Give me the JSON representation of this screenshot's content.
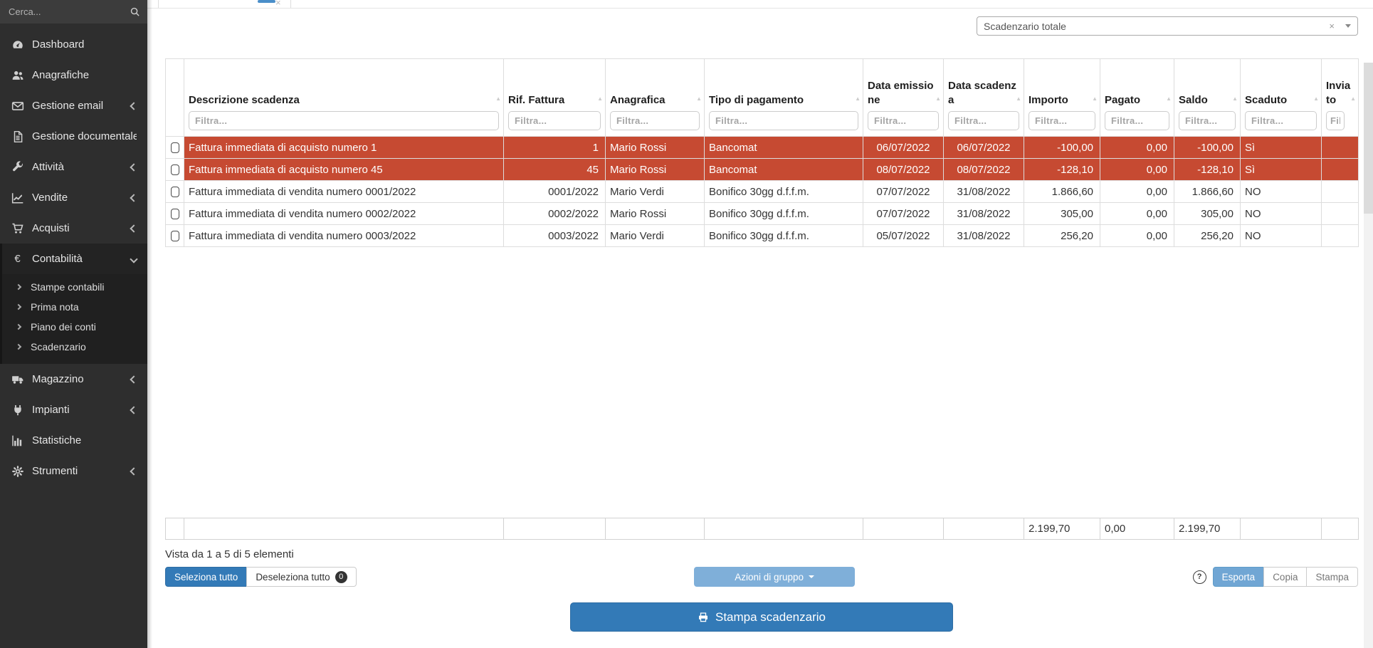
{
  "sidebar": {
    "search_placeholder": "Cerca...",
    "items": [
      {
        "label": "Dashboard",
        "icon": "dashboard"
      },
      {
        "label": "Anagrafiche",
        "icon": "users"
      },
      {
        "label": "Gestione email",
        "icon": "envelope",
        "collapsed": true
      },
      {
        "label": "Gestione documentale",
        "icon": "document"
      },
      {
        "label": "Attività",
        "icon": "wrench",
        "collapsed": true
      },
      {
        "label": "Vendite",
        "icon": "chart-line",
        "collapsed": true
      },
      {
        "label": "Acquisti",
        "icon": "cart",
        "collapsed": true
      },
      {
        "label": "Contabilità",
        "icon": "euro",
        "expanded": true,
        "children": [
          "Stampe contabili",
          "Prima nota",
          "Piano dei conti",
          "Scadenzario"
        ]
      },
      {
        "label": "Magazzino",
        "icon": "truck",
        "collapsed": true
      },
      {
        "label": "Impianti",
        "icon": "plug",
        "collapsed": true
      },
      {
        "label": "Statistiche",
        "icon": "bar-chart"
      },
      {
        "label": "Strumenti",
        "icon": "gear",
        "collapsed": true
      }
    ]
  },
  "topbar": {
    "close_glyph": "×"
  },
  "filter_select": {
    "value": "Scadenzario totale",
    "clear_glyph": "×"
  },
  "table": {
    "sort_glyph": "▲",
    "filter_placeholder": "Filtra...",
    "columns": [
      {
        "key": "cb",
        "label": ""
      },
      {
        "key": "desc",
        "label": "Descrizione scadenza"
      },
      {
        "key": "rif",
        "label": "Rif. Fattura"
      },
      {
        "key": "anagrafica",
        "label": "Anagrafica"
      },
      {
        "key": "tipo",
        "label": "Tipo di pagamento"
      },
      {
        "key": "emissione",
        "label": "Data emissione"
      },
      {
        "key": "scadenza",
        "label": "Data scadenza"
      },
      {
        "key": "importo",
        "label": "Importo"
      },
      {
        "key": "pagato",
        "label": "Pagato"
      },
      {
        "key": "saldo",
        "label": "Saldo"
      },
      {
        "key": "scaduto",
        "label": "Scaduto"
      },
      {
        "key": "inviato",
        "label": "Inviato"
      }
    ],
    "rows": [
      {
        "desc": "Fattura immediata di acquisto numero 1",
        "rif": "1",
        "anagrafica": "Mario Rossi",
        "tipo": "Bancomat",
        "emissione": "06/07/2022",
        "scadenza": "06/07/2022",
        "importo": "-100,00",
        "pagato": "0,00",
        "saldo": "-100,00",
        "scaduto": "Sì",
        "inviato": "",
        "overdue": true
      },
      {
        "desc": "Fattura immediata di acquisto numero 45",
        "rif": "45",
        "anagrafica": "Mario Rossi",
        "tipo": "Bancomat",
        "emissione": "08/07/2022",
        "scadenza": "08/07/2022",
        "importo": "-128,10",
        "pagato": "0,00",
        "saldo": "-128,10",
        "scaduto": "Sì",
        "inviato": "",
        "overdue": true
      },
      {
        "desc": "Fattura immediata di vendita numero 0001/2022",
        "rif": "0001/2022",
        "anagrafica": "Mario Verdi",
        "tipo": "Bonifico 30gg d.f.f.m.",
        "emissione": "07/07/2022",
        "scadenza": "31/08/2022",
        "importo": "1.866,60",
        "pagato": "0,00",
        "saldo": "1.866,60",
        "scaduto": "NO",
        "inviato": "",
        "overdue": false
      },
      {
        "desc": "Fattura immediata di vendita numero 0002/2022",
        "rif": "0002/2022",
        "anagrafica": "Mario Rossi",
        "tipo": "Bonifico 30gg d.f.f.m.",
        "emissione": "07/07/2022",
        "scadenza": "31/08/2022",
        "importo": "305,00",
        "pagato": "0,00",
        "saldo": "305,00",
        "scaduto": "NO",
        "inviato": "",
        "overdue": false
      },
      {
        "desc": "Fattura immediata di vendita numero 0003/2022",
        "rif": "0003/2022",
        "anagrafica": "Mario Verdi",
        "tipo": "Bonifico 30gg d.f.f.m.",
        "emissione": "05/07/2022",
        "scadenza": "31/08/2022",
        "importo": "256,20",
        "pagato": "0,00",
        "saldo": "256,20",
        "scaduto": "NO",
        "inviato": "",
        "overdue": false
      }
    ],
    "totals": {
      "importo": "2.199,70",
      "pagato": "0,00",
      "saldo": "2.199,70"
    }
  },
  "footer": {
    "info": "Vista da 1 a 5 di 5 elementi",
    "select_all": "Seleziona tutto",
    "deselect_all": "Deseleziona tutto",
    "deselect_count": "0",
    "group_actions": "Azioni di gruppo",
    "help_glyph": "?",
    "export": "Esporta",
    "copy": "Copia",
    "print": "Stampa",
    "print_schedule": "Stampa scadenzario"
  },
  "colors": {
    "accent": "#337ab7",
    "overdue_row": "#c64a32",
    "disabled_action": "#7fafd9",
    "sidebar_bg": "#2e2e2e"
  }
}
